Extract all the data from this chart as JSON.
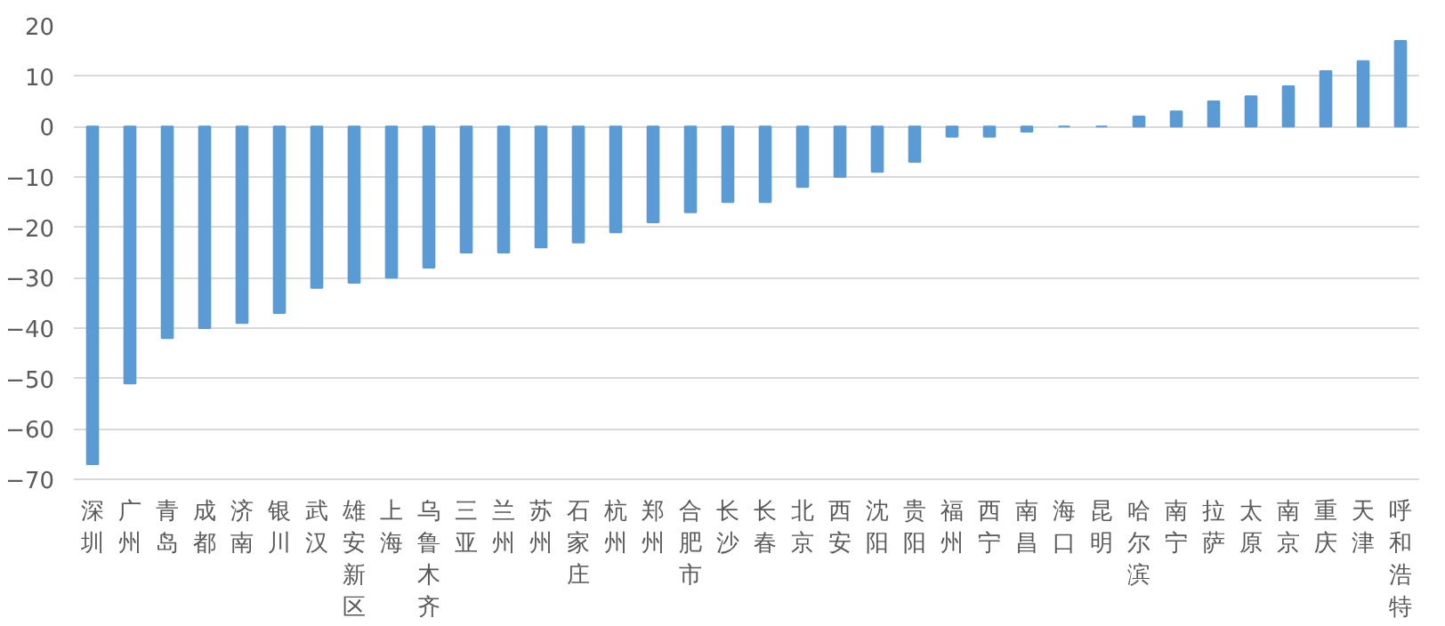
{
  "chart_data": {
    "type": "bar",
    "categories": [
      "深圳",
      "广州",
      "青岛",
      "成都",
      "济南",
      "银川",
      "武汉",
      "雄安新区",
      "上海",
      "乌鲁木齐",
      "三亚",
      "兰州",
      "苏州",
      "石家庄",
      "杭州",
      "郑州",
      "合肥市",
      "长沙",
      "长春",
      "北京",
      "西安",
      "沈阳",
      "贵阳",
      "福州",
      "西宁",
      "南昌",
      "海口",
      "昆明",
      "哈尔滨",
      "南宁",
      "拉萨",
      "太原",
      "南京",
      "重庆",
      "天津",
      "呼和浩特"
    ],
    "values": [
      -67,
      -51,
      -42,
      -40,
      -39,
      -37,
      -32,
      -31,
      -30,
      -28,
      -25,
      -25,
      -24,
      -23,
      -21,
      -19,
      -17,
      -15,
      -15,
      -12,
      -10,
      -9,
      -7,
      -2,
      -2,
      -1,
      0,
      0,
      2,
      3,
      5,
      6,
      8,
      11,
      13,
      17
    ],
    "color": "#5b9bd5",
    "ylim": [
      -70,
      20
    ],
    "yticks": [
      -70,
      -60,
      -50,
      -40,
      -30,
      -20,
      -10,
      0,
      10,
      20
    ],
    "grid": "y"
  }
}
